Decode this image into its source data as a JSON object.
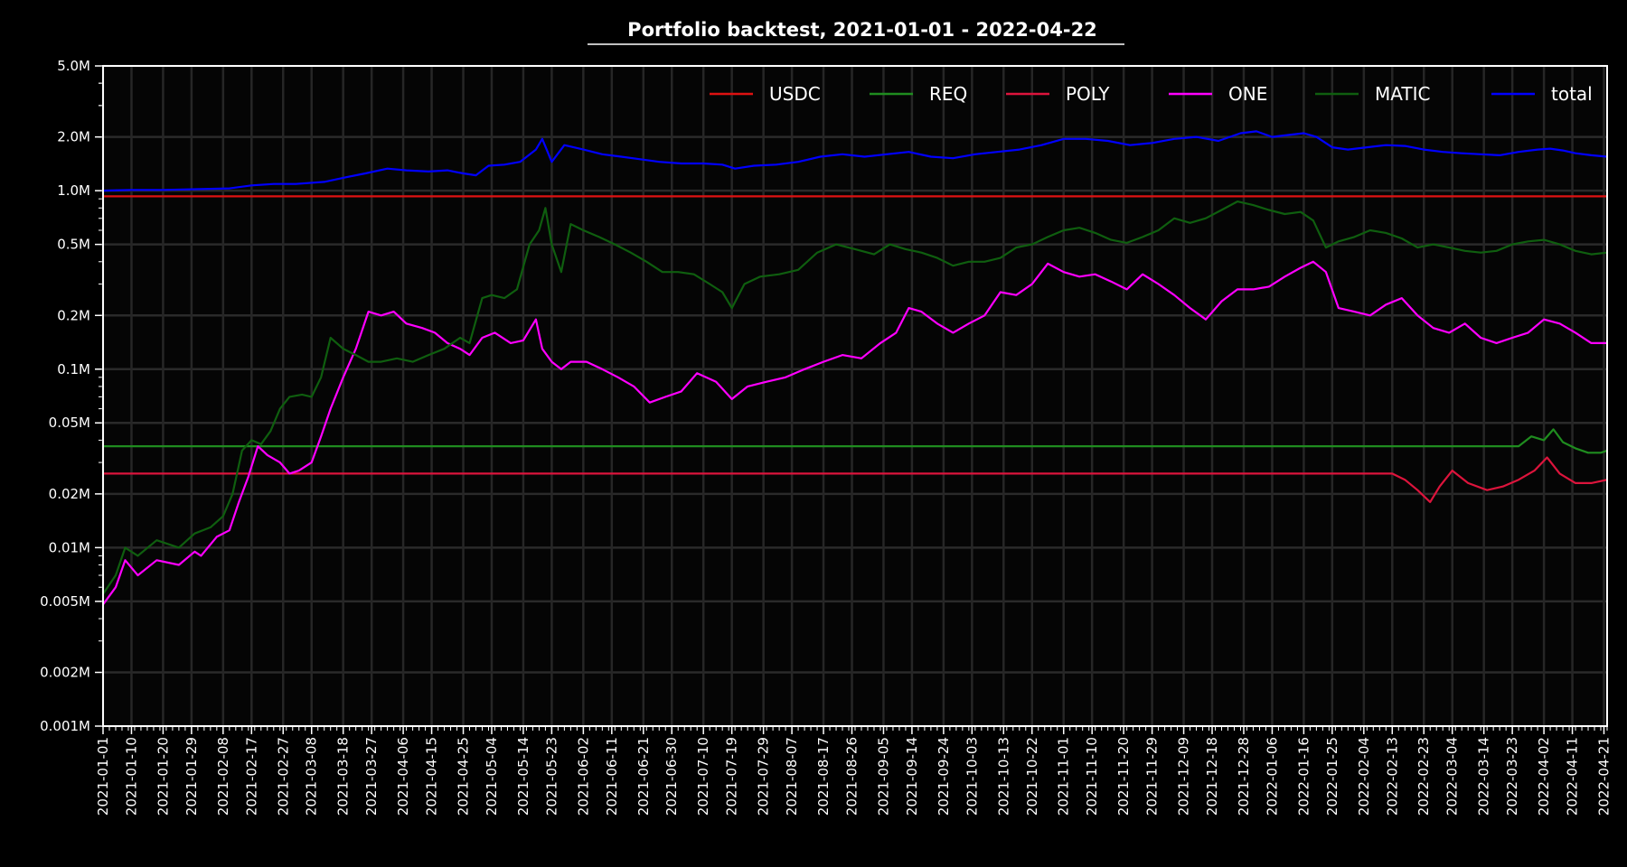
{
  "chart_data": {
    "type": "line",
    "title": "Portfolio backtest, 2021-01-01 - 2022-04-22",
    "xlabel": "",
    "ylabel": "",
    "yscale": "log",
    "ylim": [
      0.001,
      5.0
    ],
    "y_unit": "M",
    "y_ticks": [
      {
        "value": 5.0,
        "label": "5.0M"
      },
      {
        "value": 2.0,
        "label": "2.0M"
      },
      {
        "value": 1.0,
        "label": "1.0M"
      },
      {
        "value": 0.5,
        "label": "0.5M"
      },
      {
        "value": 0.2,
        "label": "0.2M"
      },
      {
        "value": 0.1,
        "label": "0.1M"
      },
      {
        "value": 0.05,
        "label": "0.05M"
      },
      {
        "value": 0.02,
        "label": "0.02M"
      },
      {
        "value": 0.01,
        "label": "0.01M"
      },
      {
        "value": 0.005,
        "label": "0.005M"
      },
      {
        "value": 0.002,
        "label": "0.002M"
      },
      {
        "value": 0.001,
        "label": "0.001M"
      }
    ],
    "xlim": [
      "2021-01-01",
      "2022-04-22"
    ],
    "x_ticks": [
      "2021-01-01",
      "2021-01-10",
      "2021-01-20",
      "2021-01-29",
      "2021-02-08",
      "2021-02-17",
      "2021-02-27",
      "2021-03-08",
      "2021-03-18",
      "2021-03-27",
      "2021-04-06",
      "2021-04-15",
      "2021-04-25",
      "2021-05-04",
      "2021-05-14",
      "2021-05-23",
      "2021-06-02",
      "2021-06-11",
      "2021-06-21",
      "2021-06-30",
      "2021-07-10",
      "2021-07-19",
      "2021-07-29",
      "2021-08-07",
      "2021-08-17",
      "2021-08-26",
      "2021-09-05",
      "2021-09-14",
      "2021-09-24",
      "2021-10-03",
      "2021-10-13",
      "2021-10-22",
      "2021-11-01",
      "2021-11-10",
      "2021-11-20",
      "2021-11-29",
      "2021-12-09",
      "2021-12-18",
      "2021-12-28",
      "2022-01-06",
      "2022-01-16",
      "2022-01-25",
      "2022-02-04",
      "2022-02-13",
      "2022-02-23",
      "2022-03-04",
      "2022-03-14",
      "2022-03-23",
      "2022-04-02",
      "2022-04-11",
      "2022-04-21"
    ],
    "grid": true,
    "legend_position": "top-right",
    "background": "#000000",
    "series": [
      {
        "name": "USDC",
        "color": "#dd1111",
        "x": [
          "2021-01-01",
          "2022-04-22"
        ],
        "y": [
          0.93,
          0.93
        ]
      },
      {
        "name": "REQ",
        "color": "#1f8c1f",
        "x": [
          "2021-01-01",
          "2022-03-25",
          "2022-03-29",
          "2022-04-02",
          "2022-04-05",
          "2022-04-08",
          "2022-04-12",
          "2022-04-16",
          "2022-04-20",
          "2022-04-22"
        ],
        "y": [
          0.037,
          0.037,
          0.042,
          0.04,
          0.046,
          0.039,
          0.036,
          0.034,
          0.034,
          0.035
        ]
      },
      {
        "name": "POLY",
        "color": "#dc143c",
        "x": [
          "2021-01-01",
          "2022-02-13",
          "2022-02-17",
          "2022-02-21",
          "2022-02-25",
          "2022-02-28",
          "2022-03-04",
          "2022-03-09",
          "2022-03-15",
          "2022-03-20",
          "2022-03-25",
          "2022-03-30",
          "2022-04-03",
          "2022-04-07",
          "2022-04-12",
          "2022-04-17",
          "2022-04-22"
        ],
        "y": [
          0.026,
          0.026,
          0.024,
          0.021,
          0.018,
          0.022,
          0.027,
          0.023,
          0.021,
          0.022,
          0.024,
          0.027,
          0.032,
          0.026,
          0.023,
          0.023,
          0.024
        ]
      },
      {
        "name": "ONE",
        "color": "#ff00ff",
        "x": [
          "2021-01-01",
          "2021-01-05",
          "2021-01-08",
          "2021-01-12",
          "2021-01-18",
          "2021-01-25",
          "2021-01-30",
          "2021-02-01",
          "2021-02-06",
          "2021-02-10",
          "2021-02-13",
          "2021-02-16",
          "2021-02-19",
          "2021-02-22",
          "2021-02-26",
          "2021-03-01",
          "2021-03-04",
          "2021-03-08",
          "2021-03-11",
          "2021-03-14",
          "2021-03-18",
          "2021-03-22",
          "2021-03-26",
          "2021-03-30",
          "2021-04-03",
          "2021-04-07",
          "2021-04-12",
          "2021-04-16",
          "2021-04-20",
          "2021-04-24",
          "2021-04-27",
          "2021-05-01",
          "2021-05-05",
          "2021-05-10",
          "2021-05-14",
          "2021-05-18",
          "2021-05-20",
          "2021-05-23",
          "2021-05-26",
          "2021-05-29",
          "2021-06-03",
          "2021-06-08",
          "2021-06-13",
          "2021-06-18",
          "2021-06-23",
          "2021-06-28",
          "2021-07-03",
          "2021-07-08",
          "2021-07-14",
          "2021-07-19",
          "2021-07-24",
          "2021-07-30",
          "2021-08-05",
          "2021-08-11",
          "2021-08-17",
          "2021-08-23",
          "2021-08-29",
          "2021-09-04",
          "2021-09-09",
          "2021-09-13",
          "2021-09-17",
          "2021-09-22",
          "2021-09-27",
          "2021-10-02",
          "2021-10-07",
          "2021-10-12",
          "2021-10-17",
          "2021-10-22",
          "2021-10-27",
          "2021-11-01",
          "2021-11-06",
          "2021-11-11",
          "2021-11-16",
          "2021-11-21",
          "2021-11-26",
          "2021-12-01",
          "2021-12-06",
          "2021-12-11",
          "2021-12-16",
          "2021-12-21",
          "2021-12-26",
          "2021-12-31",
          "2022-01-05",
          "2022-01-10",
          "2022-01-15",
          "2022-01-19",
          "2022-01-23",
          "2022-01-27",
          "2022-02-01",
          "2022-02-06",
          "2022-02-11",
          "2022-02-16",
          "2022-02-21",
          "2022-02-26",
          "2022-03-03",
          "2022-03-08",
          "2022-03-13",
          "2022-03-18",
          "2022-03-23",
          "2022-03-28",
          "2022-04-02",
          "2022-04-07",
          "2022-04-12",
          "2022-04-17",
          "2022-04-22"
        ],
        "y": [
          0.0048,
          0.006,
          0.0085,
          0.007,
          0.0085,
          0.008,
          0.0095,
          0.009,
          0.0115,
          0.0125,
          0.018,
          0.025,
          0.037,
          0.033,
          0.03,
          0.026,
          0.027,
          0.03,
          0.042,
          0.06,
          0.09,
          0.13,
          0.21,
          0.2,
          0.21,
          0.18,
          0.17,
          0.16,
          0.14,
          0.13,
          0.12,
          0.15,
          0.16,
          0.14,
          0.145,
          0.19,
          0.13,
          0.11,
          0.1,
          0.11,
          0.11,
          0.1,
          0.09,
          0.08,
          0.065,
          0.07,
          0.075,
          0.095,
          0.085,
          0.068,
          0.08,
          0.085,
          0.09,
          0.1,
          0.11,
          0.12,
          0.115,
          0.14,
          0.16,
          0.22,
          0.21,
          0.18,
          0.16,
          0.18,
          0.2,
          0.27,
          0.26,
          0.3,
          0.39,
          0.35,
          0.33,
          0.34,
          0.31,
          0.28,
          0.34,
          0.3,
          0.26,
          0.22,
          0.19,
          0.24,
          0.28,
          0.28,
          0.29,
          0.33,
          0.37,
          0.4,
          0.35,
          0.22,
          0.21,
          0.2,
          0.23,
          0.25,
          0.2,
          0.17,
          0.16,
          0.18,
          0.15,
          0.14,
          0.15,
          0.16,
          0.19,
          0.18,
          0.16,
          0.14,
          0.14
        ]
      },
      {
        "name": "MATIC",
        "color": "#0f5e0f",
        "x": [
          "2021-01-01",
          "2021-01-05",
          "2021-01-08",
          "2021-01-12",
          "2021-01-18",
          "2021-01-25",
          "2021-01-30",
          "2021-02-04",
          "2021-02-08",
          "2021-02-11",
          "2021-02-14",
          "2021-02-17",
          "2021-02-20",
          "2021-02-23",
          "2021-02-26",
          "2021-03-01",
          "2021-03-05",
          "2021-03-08",
          "2021-03-11",
          "2021-03-14",
          "2021-03-18",
          "2021-03-22",
          "2021-03-26",
          "2021-03-30",
          "2021-04-04",
          "2021-04-09",
          "2021-04-14",
          "2021-04-19",
          "2021-04-24",
          "2021-04-27",
          "2021-05-01",
          "2021-05-04",
          "2021-05-08",
          "2021-05-12",
          "2021-05-16",
          "2021-05-19",
          "2021-05-21",
          "2021-05-23",
          "2021-05-26",
          "2021-05-29",
          "2021-06-02",
          "2021-06-07",
          "2021-06-12",
          "2021-06-17",
          "2021-06-22",
          "2021-06-27",
          "2021-07-02",
          "2021-07-07",
          "2021-07-12",
          "2021-07-16",
          "2021-07-19",
          "2021-07-23",
          "2021-07-28",
          "2021-08-03",
          "2021-08-09",
          "2021-08-15",
          "2021-08-21",
          "2021-08-27",
          "2021-09-02",
          "2021-09-07",
          "2021-09-12",
          "2021-09-17",
          "2021-09-22",
          "2021-09-27",
          "2021-10-02",
          "2021-10-07",
          "2021-10-12",
          "2021-10-17",
          "2021-10-22",
          "2021-10-27",
          "2021-11-01",
          "2021-11-06",
          "2021-11-11",
          "2021-11-16",
          "2021-11-21",
          "2021-11-26",
          "2021-12-01",
          "2021-12-06",
          "2021-12-11",
          "2021-12-16",
          "2021-12-21",
          "2021-12-26",
          "2021-12-31",
          "2022-01-05",
          "2022-01-10",
          "2022-01-15",
          "2022-01-19",
          "2022-01-23",
          "2022-01-27",
          "2022-02-01",
          "2022-02-06",
          "2022-02-11",
          "2022-02-16",
          "2022-02-21",
          "2022-02-26",
          "2022-03-03",
          "2022-03-08",
          "2022-03-13",
          "2022-03-18",
          "2022-03-23",
          "2022-03-28",
          "2022-04-02",
          "2022-04-07",
          "2022-04-12",
          "2022-04-17",
          "2022-04-22"
        ],
        "y": [
          0.0055,
          0.007,
          0.01,
          0.009,
          0.011,
          0.01,
          0.012,
          0.013,
          0.015,
          0.02,
          0.035,
          0.04,
          0.038,
          0.045,
          0.06,
          0.07,
          0.072,
          0.07,
          0.09,
          0.15,
          0.13,
          0.12,
          0.11,
          0.11,
          0.115,
          0.11,
          0.12,
          0.13,
          0.15,
          0.14,
          0.25,
          0.26,
          0.25,
          0.28,
          0.5,
          0.6,
          0.8,
          0.5,
          0.35,
          0.65,
          0.6,
          0.55,
          0.5,
          0.45,
          0.4,
          0.35,
          0.35,
          0.34,
          0.3,
          0.27,
          0.22,
          0.3,
          0.33,
          0.34,
          0.36,
          0.45,
          0.5,
          0.47,
          0.44,
          0.5,
          0.47,
          0.45,
          0.42,
          0.38,
          0.4,
          0.4,
          0.42,
          0.48,
          0.5,
          0.55,
          0.6,
          0.62,
          0.58,
          0.53,
          0.51,
          0.55,
          0.6,
          0.7,
          0.66,
          0.7,
          0.78,
          0.87,
          0.83,
          0.78,
          0.74,
          0.76,
          0.68,
          0.48,
          0.52,
          0.55,
          0.6,
          0.58,
          0.54,
          0.48,
          0.5,
          0.48,
          0.46,
          0.45,
          0.46,
          0.5,
          0.52,
          0.53,
          0.5,
          0.46,
          0.44,
          0.45
        ]
      },
      {
        "name": "total",
        "color": "#0000ff",
        "x": [
          "2021-01-01",
          "2021-01-10",
          "2021-01-20",
          "2021-02-01",
          "2021-02-10",
          "2021-02-17",
          "2021-02-24",
          "2021-03-03",
          "2021-03-12",
          "2021-03-18",
          "2021-03-25",
          "2021-04-01",
          "2021-04-07",
          "2021-04-14",
          "2021-04-20",
          "2021-04-25",
          "2021-04-29",
          "2021-05-03",
          "2021-05-08",
          "2021-05-13",
          "2021-05-18",
          "2021-05-20",
          "2021-05-23",
          "2021-05-27",
          "2021-06-02",
          "2021-06-08",
          "2021-06-14",
          "2021-06-20",
          "2021-06-26",
          "2021-07-03",
          "2021-07-10",
          "2021-07-16",
          "2021-07-20",
          "2021-07-26",
          "2021-08-02",
          "2021-08-09",
          "2021-08-16",
          "2021-08-23",
          "2021-08-30",
          "2021-09-06",
          "2021-09-13",
          "2021-09-20",
          "2021-09-27",
          "2021-10-04",
          "2021-10-11",
          "2021-10-18",
          "2021-10-25",
          "2021-11-01",
          "2021-11-08",
          "2021-11-15",
          "2021-11-22",
          "2021-11-29",
          "2021-12-06",
          "2021-12-13",
          "2021-12-20",
          "2021-12-27",
          "2022-01-01",
          "2022-01-06",
          "2022-01-11",
          "2022-01-16",
          "2022-01-20",
          "2022-01-25",
          "2022-01-30",
          "2022-02-05",
          "2022-02-11",
          "2022-02-17",
          "2022-02-23",
          "2022-03-01",
          "2022-03-07",
          "2022-03-13",
          "2022-03-19",
          "2022-03-25",
          "2022-03-31",
          "2022-04-04",
          "2022-04-08",
          "2022-04-12",
          "2022-04-17",
          "2022-04-22"
        ],
        "y": [
          1.0,
          1.01,
          1.01,
          1.02,
          1.03,
          1.07,
          1.09,
          1.09,
          1.12,
          1.18,
          1.25,
          1.33,
          1.3,
          1.28,
          1.3,
          1.25,
          1.22,
          1.38,
          1.4,
          1.45,
          1.7,
          1.95,
          1.45,
          1.8,
          1.7,
          1.6,
          1.55,
          1.5,
          1.45,
          1.42,
          1.42,
          1.4,
          1.33,
          1.38,
          1.4,
          1.45,
          1.55,
          1.6,
          1.55,
          1.6,
          1.65,
          1.55,
          1.52,
          1.6,
          1.65,
          1.7,
          1.8,
          1.95,
          1.95,
          1.9,
          1.8,
          1.85,
          1.95,
          2.0,
          1.9,
          2.1,
          2.15,
          2.0,
          2.05,
          2.1,
          2.0,
          1.75,
          1.7,
          1.75,
          1.8,
          1.78,
          1.7,
          1.65,
          1.62,
          1.6,
          1.58,
          1.65,
          1.7,
          1.72,
          1.68,
          1.62,
          1.58,
          1.55
        ]
      }
    ]
  }
}
